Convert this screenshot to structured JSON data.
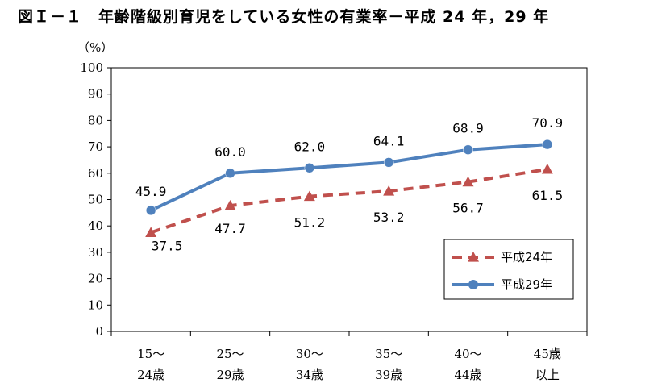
{
  "figure_title": "図Ｉ－１　年齢階級別育児をしている女性の有業率－平成 24 年，29 年",
  "chart_data": {
    "type": "line",
    "title": "図Ｉ－１　年齢階級別育児をしている女性の有業率－平成 24 年，29 年",
    "ylabel": "（%）",
    "xlabel": "",
    "ylim": [
      0,
      100
    ],
    "yticks": [
      "0",
      "10",
      "20",
      "30",
      "40",
      "50",
      "60",
      "70",
      "80",
      "90",
      "100"
    ],
    "categories": [
      [
        "15～",
        "24歳"
      ],
      [
        "25～",
        "29歳"
      ],
      [
        "30～",
        "34歳"
      ],
      [
        "35～",
        "39歳"
      ],
      [
        "40～",
        "44歳"
      ],
      [
        "45歳",
        "以上"
      ]
    ],
    "grid": false,
    "legend_position": "bottom-right",
    "series": [
      {
        "name": "平成24年",
        "values": [
          37.5,
          47.7,
          51.2,
          53.2,
          56.7,
          61.5
        ],
        "labels": [
          "37.5",
          "47.7",
          "51.2",
          "53.2",
          "56.7",
          "61.5"
        ],
        "color": "#c0504d",
        "style": "dashed",
        "marker": "triangle"
      },
      {
        "name": "平成29年",
        "values": [
          45.9,
          60.0,
          62.0,
          64.1,
          68.9,
          70.9
        ],
        "labels": [
          "45.9",
          "60.0",
          "62.0",
          "64.1",
          "68.9",
          "70.9"
        ],
        "color": "#4f81bd",
        "style": "solid",
        "marker": "circle"
      }
    ]
  }
}
